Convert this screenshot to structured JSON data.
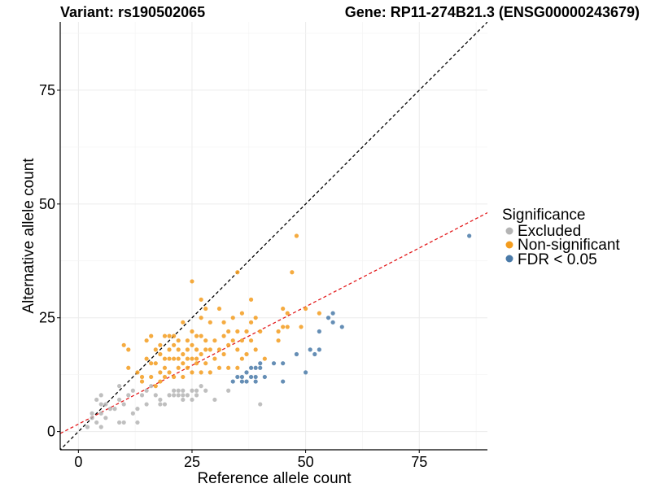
{
  "chart_data": {
    "type": "scatter",
    "title_left": "Variant: rs190502065",
    "title_right": "Gene: RP11-274B21.3 (ENSG00000243679)",
    "xlabel": "Reference allele count",
    "ylabel": "Alternative allele count",
    "xlim": [
      -4,
      90
    ],
    "ylim": [
      -4,
      90
    ],
    "x_ticks": [
      0,
      25,
      50,
      75
    ],
    "y_ticks": [
      0,
      25,
      50,
      75
    ],
    "grid": true,
    "reference_lines": [
      {
        "name": "y = x",
        "slope": 1,
        "intercept": 0,
        "color": "#000000"
      },
      {
        "name": "fit",
        "slope": 0.516,
        "intercept": 1.64,
        "color": "#e31a1c"
      }
    ],
    "legend": {
      "title": "Significance",
      "position": "right",
      "entries": [
        {
          "label": "Excluded",
          "color": "#b4b4b4"
        },
        {
          "label": "Non-significant",
          "color": "#f39c1e"
        },
        {
          "label": "FDR < 0.05",
          "color": "#4a7aa8"
        }
      ]
    },
    "series": [
      {
        "name": "Excluded",
        "color": "#b4b4b4",
        "points": [
          [
            2,
            1
          ],
          [
            3,
            3
          ],
          [
            3,
            4
          ],
          [
            4,
            2
          ],
          [
            4,
            7
          ],
          [
            5,
            1
          ],
          [
            5,
            4
          ],
          [
            5,
            6
          ],
          [
            5,
            8
          ],
          [
            6,
            3
          ],
          [
            6,
            6
          ],
          [
            7,
            5
          ],
          [
            8,
            5
          ],
          [
            9,
            2
          ],
          [
            9,
            7
          ],
          [
            9,
            10
          ],
          [
            10,
            2
          ],
          [
            10,
            6
          ],
          [
            11,
            8
          ],
          [
            12,
            4
          ],
          [
            12,
            9
          ],
          [
            13,
            2
          ],
          [
            13,
            5
          ],
          [
            14,
            8
          ],
          [
            15,
            6
          ],
          [
            15,
            9
          ],
          [
            16,
            10
          ],
          [
            17,
            8
          ],
          [
            18,
            6
          ],
          [
            18,
            7
          ],
          [
            19,
            6
          ],
          [
            20,
            8
          ],
          [
            21,
            8
          ],
          [
            21,
            9
          ],
          [
            22,
            8
          ],
          [
            22,
            9
          ],
          [
            23,
            7
          ],
          [
            23,
            8
          ],
          [
            23,
            9
          ],
          [
            24,
            8
          ],
          [
            25,
            7
          ],
          [
            25,
            9
          ],
          [
            26,
            8
          ],
          [
            26,
            9
          ],
          [
            27,
            10
          ],
          [
            28,
            9
          ],
          [
            30,
            7
          ],
          [
            33,
            9
          ],
          [
            40,
            6
          ]
        ]
      },
      {
        "name": "Non-significant",
        "color": "#f39c1e",
        "points": [
          [
            10,
            19
          ],
          [
            11,
            18
          ],
          [
            11,
            14
          ],
          [
            13,
            13
          ],
          [
            14,
            12
          ],
          [
            14,
            11
          ],
          [
            15,
            16
          ],
          [
            15,
            20
          ],
          [
            16,
            21
          ],
          [
            16,
            15
          ],
          [
            16,
            12
          ],
          [
            17,
            18
          ],
          [
            17,
            15
          ],
          [
            17,
            10
          ],
          [
            18,
            19
          ],
          [
            18,
            17
          ],
          [
            18,
            13
          ],
          [
            18,
            11
          ],
          [
            19,
            21
          ],
          [
            19,
            16
          ],
          [
            19,
            14
          ],
          [
            19,
            12
          ],
          [
            20,
            21
          ],
          [
            20,
            18
          ],
          [
            20,
            16
          ],
          [
            20,
            13
          ],
          [
            21,
            21
          ],
          [
            21,
            19
          ],
          [
            21,
            16
          ],
          [
            21,
            12
          ],
          [
            22,
            18
          ],
          [
            22,
            16
          ],
          [
            22,
            14
          ],
          [
            22,
            20
          ],
          [
            23,
            24
          ],
          [
            23,
            17
          ],
          [
            23,
            15
          ],
          [
            23,
            12
          ],
          [
            24,
            20
          ],
          [
            24,
            18
          ],
          [
            24,
            16
          ],
          [
            24,
            14
          ],
          [
            25,
            33
          ],
          [
            25,
            22
          ],
          [
            25,
            19
          ],
          [
            25,
            16
          ],
          [
            25,
            13
          ],
          [
            26,
            21
          ],
          [
            26,
            18
          ],
          [
            26,
            16
          ],
          [
            26,
            15
          ],
          [
            27,
            25
          ],
          [
            27,
            29
          ],
          [
            27,
            21
          ],
          [
            27,
            17
          ],
          [
            27,
            13
          ],
          [
            28,
            27
          ],
          [
            28,
            20
          ],
          [
            28,
            18
          ],
          [
            28,
            15
          ],
          [
            29,
            24
          ],
          [
            29,
            18
          ],
          [
            29,
            13
          ],
          [
            30,
            20
          ],
          [
            30,
            16
          ],
          [
            31,
            27
          ],
          [
            31,
            18
          ],
          [
            31,
            14
          ],
          [
            32,
            24
          ],
          [
            32,
            21
          ],
          [
            32,
            17
          ],
          [
            33,
            22
          ],
          [
            33,
            19
          ],
          [
            33,
            14
          ],
          [
            34,
            25
          ],
          [
            34,
            20
          ],
          [
            35,
            35
          ],
          [
            35,
            22
          ],
          [
            35,
            18
          ],
          [
            35,
            14
          ],
          [
            36,
            26
          ],
          [
            36,
            20
          ],
          [
            36,
            16
          ],
          [
            37,
            22
          ],
          [
            37,
            17
          ],
          [
            38,
            29
          ],
          [
            38,
            24
          ],
          [
            38,
            20
          ],
          [
            39,
            25
          ],
          [
            39,
            18
          ],
          [
            40,
            22
          ],
          [
            41,
            16
          ],
          [
            44,
            20
          ],
          [
            44,
            22
          ],
          [
            45,
            27
          ],
          [
            45,
            23
          ],
          [
            46,
            26
          ],
          [
            46,
            23
          ],
          [
            47,
            35
          ],
          [
            48,
            43
          ],
          [
            49,
            23
          ],
          [
            50,
            27
          ],
          [
            53,
            26
          ]
        ]
      },
      {
        "name": "FDR < 0.05",
        "color": "#4a7aa8",
        "points": [
          [
            34,
            11
          ],
          [
            35,
            12
          ],
          [
            36,
            12
          ],
          [
            36,
            11
          ],
          [
            37,
            13
          ],
          [
            37,
            11
          ],
          [
            38,
            14
          ],
          [
            38,
            12
          ],
          [
            39,
            14
          ],
          [
            39,
            12
          ],
          [
            39,
            11
          ],
          [
            40,
            14
          ],
          [
            40,
            15
          ],
          [
            41,
            12
          ],
          [
            43,
            15
          ],
          [
            45,
            15
          ],
          [
            45,
            11
          ],
          [
            48,
            17
          ],
          [
            50,
            13
          ],
          [
            51,
            18
          ],
          [
            52,
            17
          ],
          [
            53,
            18
          ],
          [
            53,
            22
          ],
          [
            55,
            25
          ],
          [
            56,
            26
          ],
          [
            56,
            24
          ],
          [
            58,
            23
          ],
          [
            86,
            43
          ]
        ]
      }
    ]
  }
}
